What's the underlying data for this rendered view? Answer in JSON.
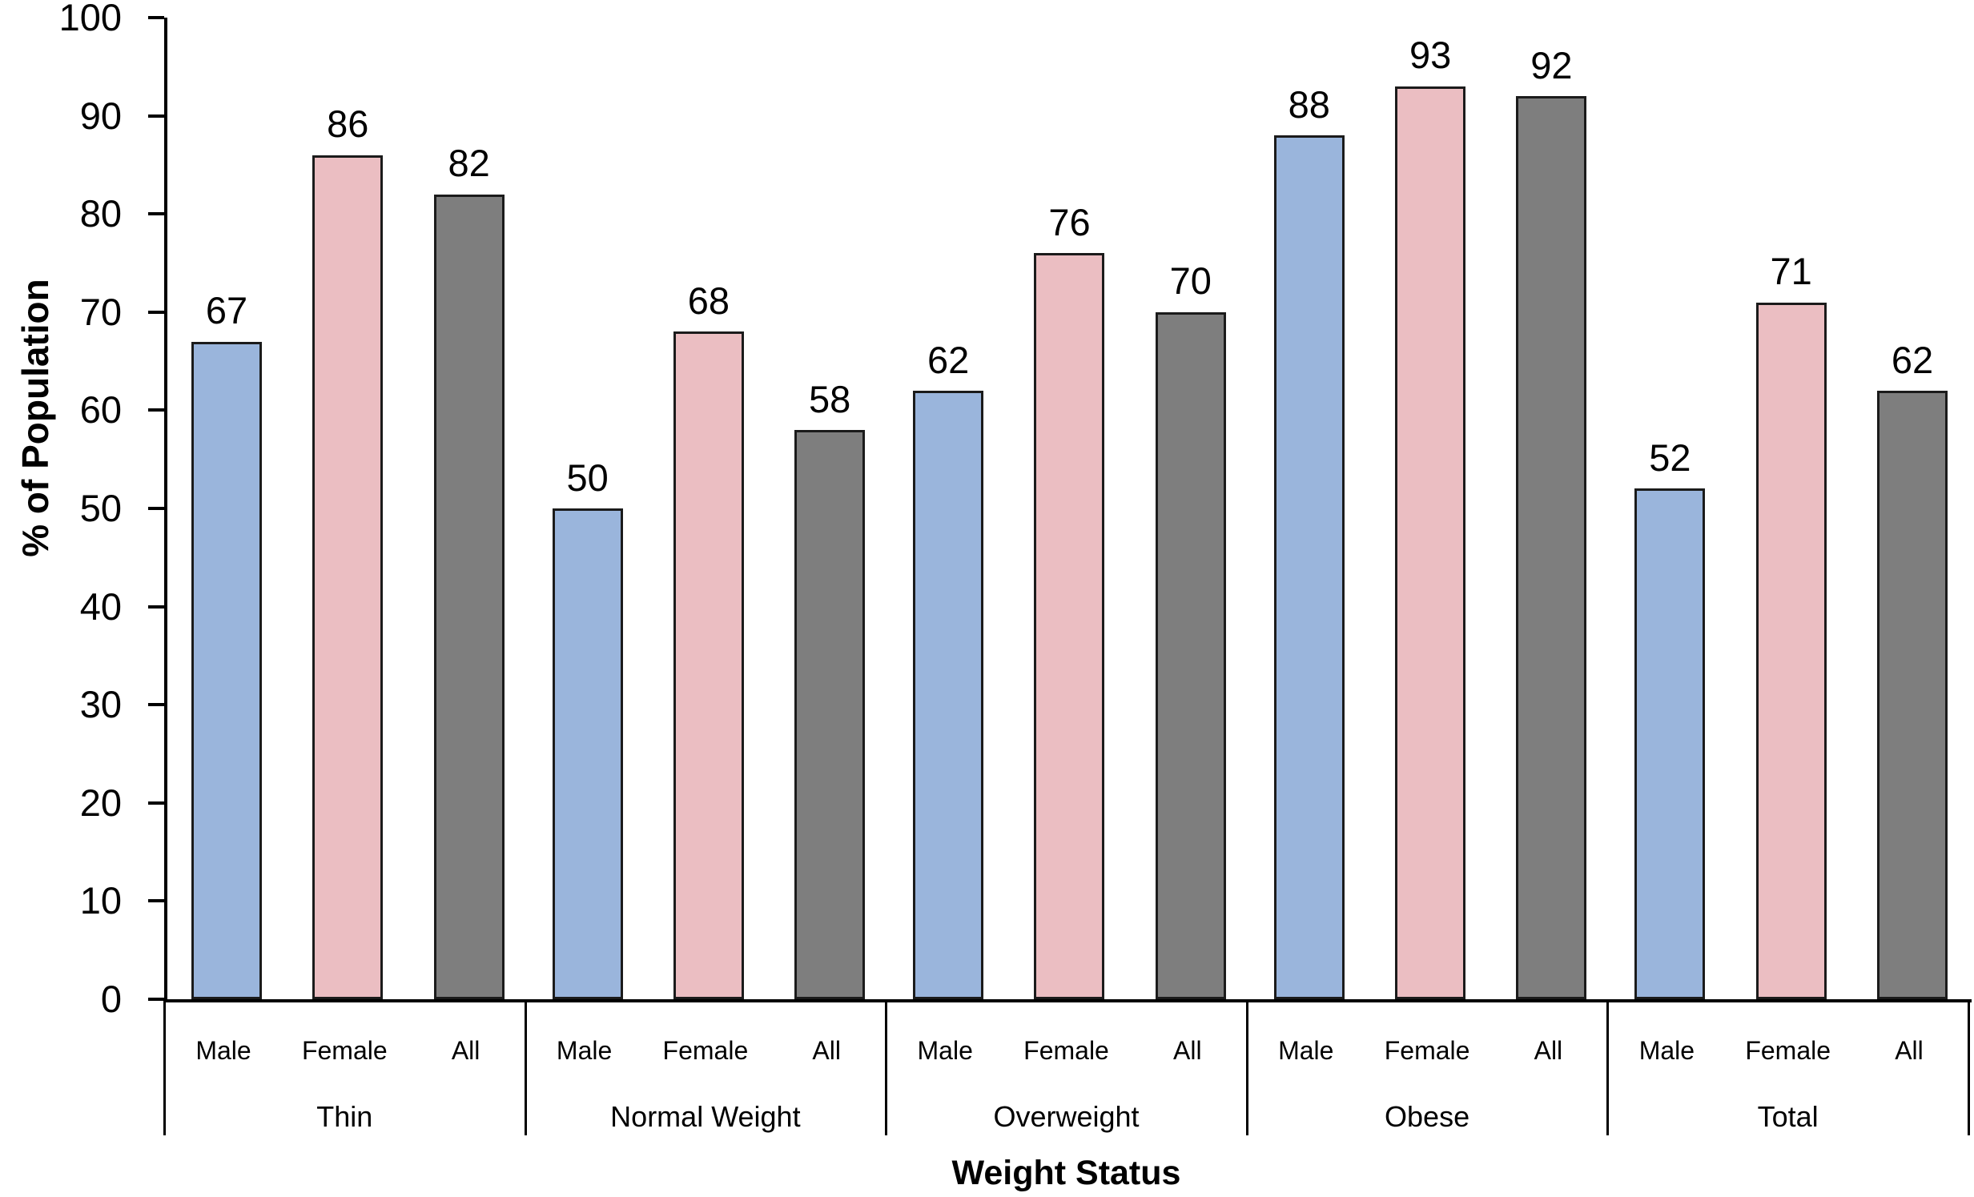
{
  "chart_data": {
    "type": "bar",
    "title": "",
    "xlabel": "Weight Status",
    "ylabel": "% of Population",
    "ylim": [
      0,
      100
    ],
    "ytick_step": 10,
    "yticks": [
      0,
      10,
      20,
      30,
      40,
      50,
      60,
      70,
      80,
      90,
      100
    ],
    "grid": false,
    "legend_position": "none",
    "bar_value_labels_shown": true,
    "categories": [
      "Thin",
      "Normal Weight",
      "Overweight",
      "Obese",
      "Total"
    ],
    "series_axis_labels_per_group": [
      "Male",
      "Female",
      "All"
    ],
    "series": [
      {
        "name": "Male",
        "color": "#9AB5DC",
        "values": [
          67,
          50,
          62,
          88,
          52
        ]
      },
      {
        "name": "Female",
        "color": "#EBBEC2",
        "values": [
          86,
          68,
          76,
          93,
          71
        ]
      },
      {
        "name": "All",
        "color": "#7E7E7E",
        "values": [
          82,
          58,
          70,
          92,
          62
        ]
      }
    ],
    "colors": {
      "male_bar": "#9AB5DC",
      "female_bar": "#EBBEC2",
      "all_bar": "#7E7E7E",
      "bar_border": "#1b1b1b",
      "axis": "#000000",
      "text": "#000000",
      "background": "#FFFFFF"
    }
  }
}
